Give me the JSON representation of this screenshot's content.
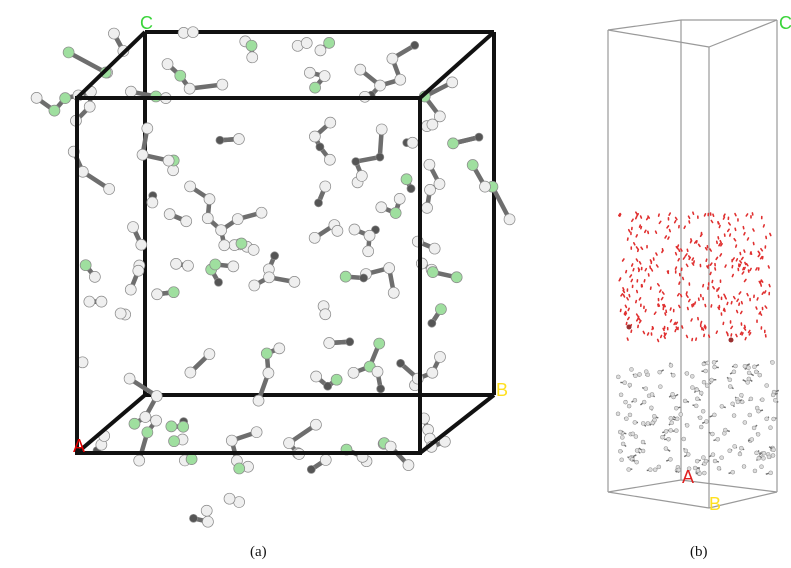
{
  "panel_a": {
    "caption": "(a)",
    "axis_labels": {
      "a": "A",
      "b": "B",
      "c": "C"
    },
    "colors": {
      "box": "#111111",
      "bond": "#6e6e6e",
      "hydrogen": "#efefef",
      "fluorine": "#9fdf9f",
      "carbon": "#555555",
      "a_label": "#e00000",
      "b_label": "#ffe020",
      "c_label": "#3ad43a"
    },
    "content": "molecular model inside a black simulation cell"
  },
  "panel_b": {
    "caption": "(b)",
    "axis_labels": {
      "a": "A",
      "b": "B",
      "c": "C"
    },
    "colors": {
      "box": "#9a9a9a",
      "water": "#e03030",
      "polymer": "#707070",
      "a_label": "#e02020",
      "b_label": "#ffe020",
      "c_label": "#3ad43a"
    },
    "content": "tall simulation cell with dispersed red water and polymer slab at bottom"
  }
}
